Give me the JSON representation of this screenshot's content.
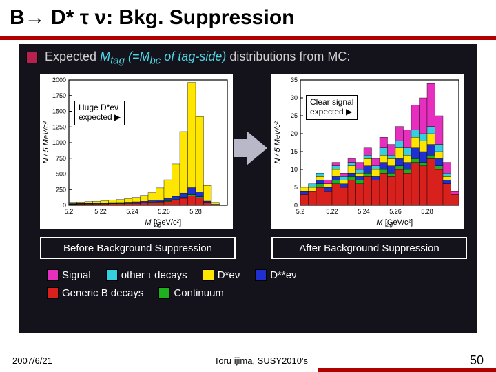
{
  "title_parts": [
    "B",
    "→",
    " D* ",
    "τ ν",
    ": Bkg. Suppression"
  ],
  "heading": {
    "pre": "Expected ",
    "em": "M",
    "sub": "tag",
    "em2": " (=M",
    "sub2": "bc",
    "em3": " of tag-side)",
    "post": " distributions from MC:"
  },
  "heading_bullet_color": "#b82050",
  "chart_left": {
    "type": "stacked-histogram",
    "x_label": "M_{tag}  [GeV/c^{2}]",
    "y_label": "N / 5 MeV/c^{2}",
    "xlim": [
      5.2,
      5.3
    ],
    "xticks": [
      5.2,
      5.22,
      5.24,
      5.26,
      5.28
    ],
    "ylim": [
      0,
      2000
    ],
    "yticks": [
      0,
      250,
      500,
      750,
      1000,
      1250,
      1500,
      1750,
      2000
    ],
    "bg": "#ffffff",
    "frame": "#000000",
    "annotation": {
      "l1": "Huge D*eν",
      "l2": "expected ▶"
    },
    "stacks_order": [
      "red",
      "green",
      "blue",
      "yellow"
    ],
    "colors": {
      "red": "#d8201c",
      "green": "#1eb01e",
      "blue": "#2030d0",
      "yellow": "#ffe600"
    },
    "bins_x": [
      5.2,
      5.205,
      5.21,
      5.215,
      5.22,
      5.225,
      5.23,
      5.235,
      5.24,
      5.245,
      5.25,
      5.255,
      5.26,
      5.265,
      5.27,
      5.275,
      5.28,
      5.285,
      5.29,
      5.295
    ],
    "stacks": {
      "red": [
        15,
        18,
        18,
        20,
        22,
        25,
        25,
        28,
        30,
        35,
        40,
        50,
        60,
        80,
        110,
        150,
        120,
        40,
        10,
        2
      ],
      "green": [
        5,
        5,
        6,
        6,
        7,
        7,
        8,
        8,
        9,
        9,
        10,
        10,
        12,
        14,
        16,
        20,
        14,
        6,
        2,
        1
      ],
      "blue": [
        8,
        8,
        9,
        10,
        10,
        12,
        12,
        14,
        16,
        18,
        22,
        26,
        34,
        46,
        70,
        110,
        80,
        20,
        4,
        1
      ],
      "yellow": [
        20,
        22,
        25,
        28,
        32,
        38,
        45,
        55,
        70,
        95,
        130,
        190,
        300,
        520,
        980,
        1680,
        1200,
        250,
        30,
        4
      ]
    }
  },
  "chart_right": {
    "type": "stacked-histogram",
    "x_label": "M_{tag}  [GeV/c^{2}]",
    "y_label": "N / 5 MeV/c^{2}",
    "xlim": [
      5.2,
      5.3
    ],
    "xticks": [
      5.2,
      5.22,
      5.24,
      5.26,
      5.28
    ],
    "ylim": [
      0,
      35
    ],
    "yticks": [
      0,
      5,
      10,
      15,
      20,
      25,
      30,
      35
    ],
    "bg": "#ffffff",
    "frame": "#000000",
    "annotation": {
      "l1": "Clear signal",
      "l2": "expected ▶"
    },
    "stacks_order": [
      "red",
      "green",
      "blue",
      "yellow",
      "cyan",
      "magenta"
    ],
    "colors": {
      "red": "#d8201c",
      "green": "#1eb01e",
      "blue": "#2030d0",
      "yellow": "#ffe600",
      "cyan": "#34d0e0",
      "magenta": "#e62fbf"
    },
    "bins_x": [
      5.2,
      5.205,
      5.21,
      5.215,
      5.22,
      5.225,
      5.23,
      5.235,
      5.24,
      5.245,
      5.25,
      5.255,
      5.26,
      5.265,
      5.27,
      5.275,
      5.28,
      5.285,
      5.29,
      5.295
    ],
    "stacks": {
      "red": [
        3,
        4,
        5,
        4,
        6,
        5,
        7,
        6,
        8,
        7,
        9,
        8,
        10,
        9,
        12,
        11,
        13,
        10,
        6,
        3
      ],
      "green": [
        0,
        0,
        1,
        0,
        1,
        0,
        1,
        1,
        1,
        0,
        1,
        1,
        1,
        1,
        1,
        1,
        1,
        1,
        0,
        0
      ],
      "blue": [
        1,
        0,
        1,
        1,
        1,
        1,
        1,
        1,
        2,
        1,
        2,
        2,
        2,
        2,
        3,
        3,
        3,
        2,
        1,
        0
      ],
      "yellow": [
        1,
        1,
        1,
        1,
        2,
        1,
        2,
        1,
        2,
        2,
        2,
        2,
        3,
        2,
        3,
        3,
        3,
        2,
        1,
        0
      ],
      "cyan": [
        0,
        1,
        1,
        0,
        1,
        1,
        1,
        1,
        1,
        1,
        2,
        1,
        2,
        2,
        2,
        2,
        2,
        2,
        1,
        0
      ],
      "magenta": [
        0,
        0,
        0,
        1,
        1,
        1,
        1,
        2,
        2,
        2,
        3,
        3,
        4,
        5,
        7,
        10,
        12,
        8,
        3,
        1
      ]
    }
  },
  "captions": {
    "left": "Before Background Suppression",
    "right": "After Background Suppression"
  },
  "legend": [
    {
      "c": "#e62fbf",
      "t": "Signal"
    },
    {
      "c": "#34d0e0",
      "t": "other τ decays"
    },
    {
      "c": "#ffe600",
      "t": "D*eν"
    },
    {
      "c": "#2030d0",
      "t": "D**eν"
    },
    {
      "c": "#d8201c",
      "t": "Generic B decays"
    },
    {
      "c": "#1eb01e",
      "t": "Continuum"
    }
  ],
  "footer": {
    "date": "2007/6/21",
    "center": "Toru ijima, SUSY2010's",
    "page": "50"
  }
}
